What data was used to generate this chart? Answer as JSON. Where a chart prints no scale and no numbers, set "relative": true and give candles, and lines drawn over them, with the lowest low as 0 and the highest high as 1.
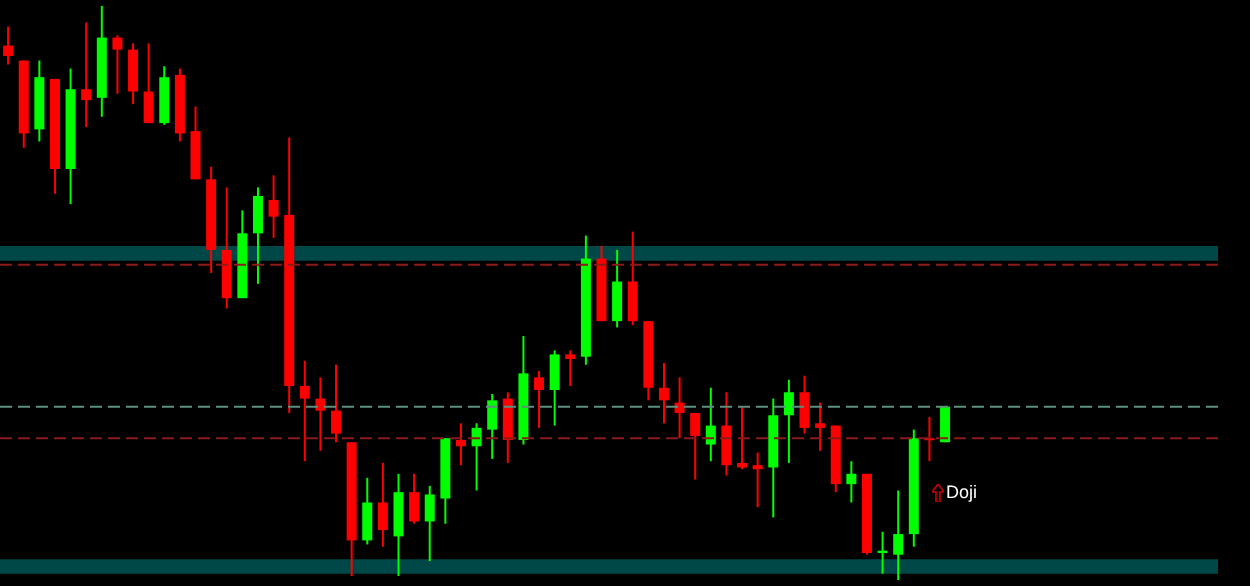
{
  "chart_data": {
    "type": "candlestick",
    "relative": true,
    "categories": [
      null,
      null,
      null,
      null,
      null,
      null,
      null,
      null,
      null,
      null,
      null,
      null,
      null,
      null,
      null,
      null,
      null,
      null,
      null,
      null,
      null,
      null,
      null,
      null,
      null,
      null,
      null,
      null,
      null,
      null,
      null,
      null,
      null,
      null,
      null,
      null,
      null,
      null,
      null,
      null,
      null,
      null,
      null,
      null,
      null,
      null,
      null,
      null,
      null,
      null,
      null,
      null,
      null,
      null,
      null,
      null,
      null,
      null,
      null,
      null,
      null,
      null,
      null,
      null,
      null,
      null,
      null,
      null,
      null,
      null,
      null,
      null,
      null,
      null,
      null,
      null,
      null,
      null
    ],
    "ohlc": [
      [
        0.931,
        0.964,
        0.898,
        0.913
      ],
      [
        0.905,
        0.905,
        0.753,
        0.778
      ],
      [
        0.785,
        0.905,
        0.764,
        0.876
      ],
      [
        0.873,
        0.873,
        0.673,
        0.716
      ],
      [
        0.716,
        0.891,
        0.655,
        0.855
      ],
      [
        0.855,
        0.971,
        0.789,
        0.836
      ],
      [
        0.84,
        1,
        0.807,
        0.945
      ],
      [
        0.945,
        0.949,
        0.847,
        0.924
      ],
      [
        0.924,
        0.935,
        0.829,
        0.851
      ],
      [
        0.851,
        0.935,
        0.796,
        0.796
      ],
      [
        0.796,
        0.895,
        0.793,
        0.876
      ],
      [
        0.88,
        0.891,
        0.764,
        0.778
      ],
      [
        0.782,
        0.825,
        0.698,
        0.698
      ],
      [
        0.698,
        0.72,
        0.535,
        0.575
      ],
      [
        0.575,
        0.684,
        0.473,
        0.491
      ],
      [
        0.491,
        0.644,
        0.491,
        0.604
      ],
      [
        0.604,
        0.684,
        0.516,
        0.669
      ],
      [
        0.662,
        0.705,
        0.596,
        0.633
      ],
      [
        0.636,
        0.771,
        0.291,
        0.338
      ],
      [
        0.338,
        0.382,
        0.207,
        0.316
      ],
      [
        0.316,
        0.353,
        0.225,
        0.295
      ],
      [
        0.295,
        0.375,
        0.24,
        0.255
      ],
      [
        0.24,
        0.24,
        0.007,
        0.069
      ],
      [
        0.069,
        0.178,
        0.062,
        0.135
      ],
      [
        0.135,
        0.204,
        0.058,
        0.087
      ],
      [
        0.076,
        0.185,
        0.007,
        0.153
      ],
      [
        0.153,
        0.185,
        0.098,
        0.102
      ],
      [
        0.102,
        0.164,
        0.033,
        0.149
      ],
      [
        0.142,
        0.247,
        0.098,
        0.247
      ],
      [
        0.244,
        0.273,
        0.2,
        0.233
      ],
      [
        0.233,
        0.273,
        0.156,
        0.265
      ],
      [
        0.262,
        0.324,
        0.211,
        0.313
      ],
      [
        0.316,
        0.327,
        0.204,
        0.244
      ],
      [
        0.244,
        0.425,
        0.236,
        0.36
      ],
      [
        0.353,
        0.364,
        0.265,
        0.331
      ],
      [
        0.331,
        0.4,
        0.269,
        0.393
      ],
      [
        0.393,
        0.4,
        0.338,
        0.385
      ],
      [
        0.389,
        0.6,
        0.375,
        0.56
      ],
      [
        0.56,
        0.582,
        0.451,
        0.451
      ],
      [
        0.451,
        0.575,
        0.44,
        0.52
      ],
      [
        0.52,
        0.607,
        0.444,
        0.451
      ],
      [
        0.451,
        0.451,
        0.313,
        0.335
      ],
      [
        0.335,
        0.378,
        0.273,
        0.313
      ],
      [
        0.309,
        0.353,
        0.247,
        0.291
      ],
      [
        0.291,
        0.291,
        0.175,
        0.251
      ],
      [
        0.236,
        0.335,
        0.207,
        0.269
      ],
      [
        0.269,
        0.327,
        0.182,
        0.2
      ],
      [
        0.204,
        0.302,
        0.193,
        0.196
      ],
      [
        0.2,
        0.222,
        0.127,
        0.193
      ],
      [
        0.196,
        0.316,
        0.109,
        0.287
      ],
      [
        0.287,
        0.349,
        0.204,
        0.327
      ],
      [
        0.327,
        0.356,
        0.255,
        0.265
      ],
      [
        0.273,
        0.309,
        0.225,
        0.265
      ],
      [
        0.269,
        0.269,
        0.153,
        0.167
      ],
      [
        0.167,
        0.207,
        0.135,
        0.185
      ],
      [
        0.185,
        0.185,
        0.044,
        0.047
      ],
      [
        0.047,
        0.084,
        0.011,
        0.051
      ],
      [
        0.044,
        0.156,
        0,
        0.08
      ],
      [
        0.08,
        0.262,
        0.058,
        0.247
      ],
      [
        0.247,
        0.284,
        0.207,
        0.244
      ],
      [
        0.24,
        0.302,
        0.24,
        0.302
      ],
      null,
      null,
      null,
      null,
      null,
      null,
      null,
      null,
      null,
      null,
      null,
      null,
      null,
      null,
      null,
      null,
      null
    ],
    "colors": [
      "#ff0000",
      "#ff0000",
      "#00ff00",
      "#ff0000",
      "#00ff00",
      "#ff0000",
      "#00ff00",
      "#ff0000",
      "#ff0000",
      "#ff0000",
      "#00ff00",
      "#ff0000",
      "#ff0000",
      "#ff0000",
      "#ff0000",
      "#00ff00",
      "#00ff00",
      "#ff0000",
      "#ff0000",
      "#ff0000",
      "#ff0000",
      "#ff0000",
      "#ff0000",
      "#00ff00",
      "#ff0000",
      "#00ff00",
      "#ff0000",
      "#00ff00",
      "#00ff00",
      "#ff0000",
      "#00ff00",
      "#00ff00",
      "#ff0000",
      "#00ff00",
      "#ff0000",
      "#00ff00",
      "#ff0000",
      "#00ff00",
      "#ff0000",
      "#00ff00",
      "#ff0000",
      "#ff0000",
      "#ff0000",
      "#ff0000",
      "#ff0000",
      "#00ff00",
      "#ff0000",
      "#ff0000",
      "#ff0000",
      "#00ff00",
      "#00ff00",
      "#ff0000",
      "#ff0000",
      "#ff0000",
      "#00ff00",
      "#ff0000",
      "#00ff00",
      "#00ff00",
      "#00ff00",
      "#ff0000",
      "#00ff00",
      null,
      null,
      null,
      null,
      null,
      null,
      null,
      null,
      null,
      null,
      null,
      null,
      null,
      null,
      null,
      null,
      null
    ],
    "bands": [
      {
        "axis": "y",
        "from": 0.556,
        "to": 0.582,
        "color": "#006060"
      },
      {
        "axis": "y",
        "from": 0.011,
        "to": 0.036,
        "color": "#006060"
      }
    ],
    "ref_lines": [
      {
        "axis": "y",
        "value": 0.549,
        "color": "#8b1a1a",
        "line_style": "dashed"
      },
      {
        "axis": "y",
        "value": 0.302,
        "color": "#5f8f7f",
        "line_style": "dashed"
      },
      {
        "axis": "y",
        "value": 0.247,
        "color": "#8b1a1a",
        "line_style": "dashed"
      }
    ],
    "annotations": [
      "Doji"
    ]
  }
}
